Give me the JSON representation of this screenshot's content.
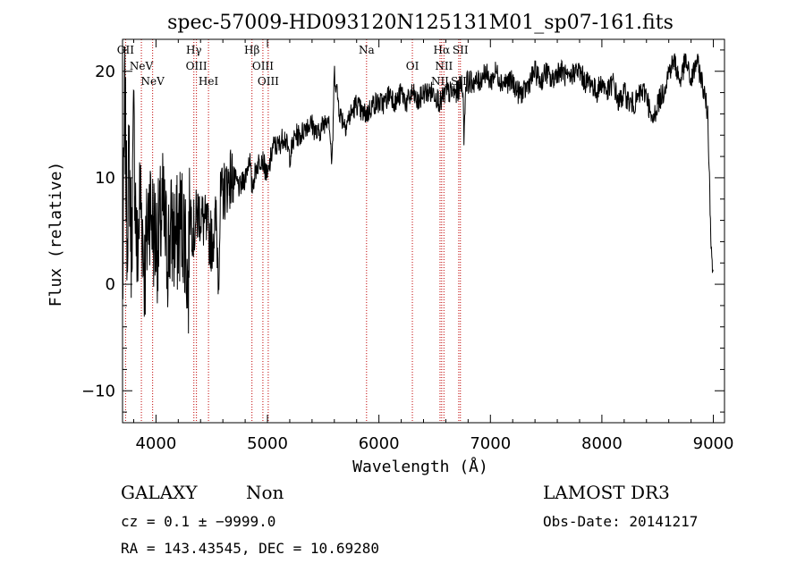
{
  "chart_data": {
    "type": "line",
    "title": "spec-57009-HD093120N125131M01_sp07-161.fits",
    "xlabel": "Wavelength (Å)",
    "ylabel": "Flux (relative)",
    "xlim": [
      3700,
      9100
    ],
    "ylim": [
      -13,
      23
    ],
    "xticks": [
      4000,
      5000,
      6000,
      7000,
      8000,
      9000
    ],
    "xtick_labels": [
      "4000",
      "5000",
      "6000",
      "7000",
      "8000",
      "9000"
    ],
    "yticks": [
      -10,
      0,
      10,
      20
    ],
    "ytick_labels": [
      "−10",
      "0",
      "10",
      "20"
    ],
    "series": [
      {
        "name": "spectrum",
        "x": [
          3700,
          3720,
          3740,
          3760,
          3780,
          3800,
          3830,
          3860,
          3900,
          3940,
          3980,
          4020,
          4060,
          4100,
          4140,
          4180,
          4220,
          4260,
          4290,
          4300,
          4320,
          4340,
          4380,
          4420,
          4460,
          4500,
          4540,
          4560,
          4580,
          4620,
          4660,
          4700,
          4750,
          4800,
          4840,
          4860,
          4900,
          4950,
          5000,
          5050,
          5100,
          5150,
          5200,
          5250,
          5300,
          5350,
          5400,
          5450,
          5500,
          5550,
          5580,
          5600,
          5650,
          5700,
          5750,
          5800,
          5850,
          5893,
          5950,
          6000,
          6050,
          6100,
          6150,
          6200,
          6250,
          6300,
          6350,
          6400,
          6450,
          6500,
          6550,
          6600,
          6650,
          6700,
          6750,
          6763,
          6780,
          6800,
          6850,
          6900,
          6950,
          7000,
          7050,
          7100,
          7150,
          7200,
          7250,
          7300,
          7350,
          7400,
          7450,
          7500,
          7550,
          7600,
          7650,
          7700,
          7750,
          7800,
          7850,
          7900,
          7950,
          8000,
          8050,
          8100,
          8150,
          8200,
          8250,
          8300,
          8350,
          8400,
          8450,
          8500,
          8550,
          8600,
          8650,
          8700,
          8750,
          8800,
          8850,
          8900,
          8950,
          8980,
          9000
        ],
        "values": [
          -2,
          18,
          5,
          12,
          3,
          15,
          2,
          9,
          1,
          8,
          5,
          4,
          7,
          3,
          5,
          4,
          6,
          5,
          -1,
          8,
          6,
          5,
          7,
          6,
          5,
          4,
          6,
          1,
          8,
          9,
          10,
          10,
          9,
          10,
          12,
          9,
          11,
          12,
          10,
          13,
          13,
          14,
          12,
          14,
          14,
          15,
          15,
          14,
          15,
          16,
          11,
          20,
          16,
          15,
          16,
          17,
          16,
          16,
          17,
          17,
          17,
          18,
          17,
          18,
          17,
          18,
          17,
          18,
          18,
          18,
          17,
          18,
          18,
          18,
          19,
          14,
          19,
          19,
          19,
          19,
          20,
          19,
          20,
          19,
          19,
          19,
          18,
          18,
          19,
          20,
          19,
          20,
          19,
          20,
          20,
          19,
          20,
          20,
          19,
          19,
          18,
          19,
          18,
          19,
          17,
          18,
          17,
          17,
          18,
          18,
          15,
          17,
          18,
          20,
          21,
          19,
          21,
          19,
          21,
          19,
          16,
          4,
          0
        ]
      }
    ],
    "line_markers": [
      {
        "wavelength": 3727,
        "labels": [
          "OII"
        ]
      },
      {
        "wavelength": 3869,
        "labels": [
          "NeV"
        ]
      },
      {
        "wavelength": 3970,
        "labels": [
          "NeV"
        ]
      },
      {
        "wavelength": 4340,
        "labels": [
          "Hγ"
        ]
      },
      {
        "wavelength": 4363,
        "labels": [
          "OIII"
        ]
      },
      {
        "wavelength": 4471,
        "labels": [
          "HeI"
        ]
      },
      {
        "wavelength": 4861,
        "labels": [
          "Hβ"
        ]
      },
      {
        "wavelength": 4959,
        "labels": [
          "OIII"
        ]
      },
      {
        "wavelength": 5007,
        "labels": [
          "OIII"
        ]
      },
      {
        "wavelength": 5889,
        "labels": [
          "Na"
        ]
      },
      {
        "wavelength": 6300,
        "labels": [
          "OI"
        ]
      },
      {
        "wavelength": 6548,
        "labels": [
          "NII"
        ]
      },
      {
        "wavelength": 6563,
        "labels": [
          "Hα"
        ]
      },
      {
        "wavelength": 6583,
        "labels": [
          "NII"
        ]
      },
      {
        "wavelength": 6716,
        "labels": [
          "SII"
        ]
      },
      {
        "wavelength": 6731,
        "labels": [
          "SII"
        ]
      }
    ],
    "line_marker_color": "#c00000"
  },
  "annotations": {
    "object_class": "GALAXY",
    "subclass": "Non",
    "cz": "cz = 0.1 ± −9999.0",
    "survey": "LAMOST DR3",
    "obs_date": "Obs-Date: 20141217",
    "coords": "RA = 143.43545, DEC =  10.69280"
  }
}
